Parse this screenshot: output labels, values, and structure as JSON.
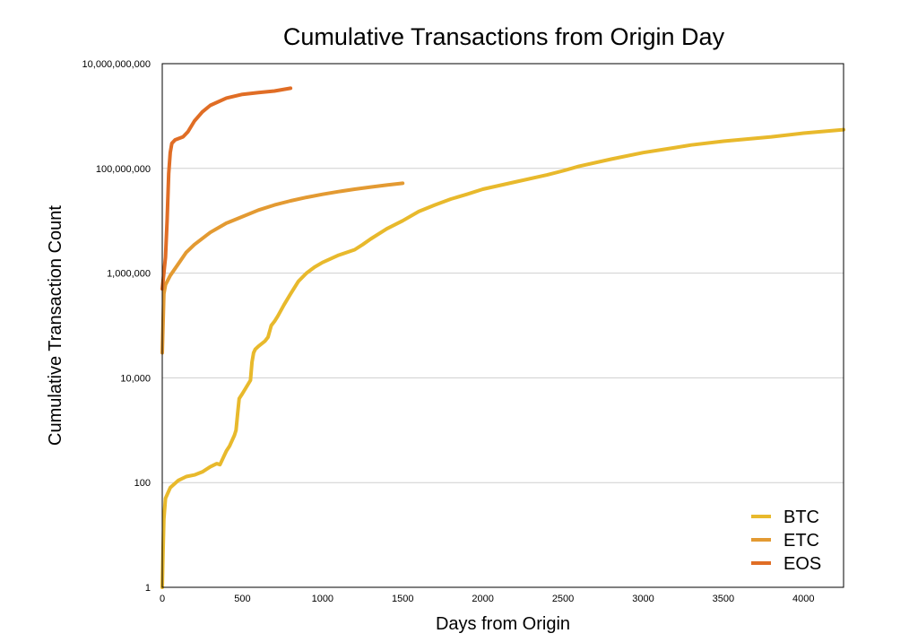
{
  "chart_data": {
    "type": "line",
    "title": "Cumulative Transactions from Origin Day",
    "xlabel": "Days from Origin",
    "ylabel": "Cumulative Transaction Count",
    "xlim": [
      0,
      4250
    ],
    "ylim": [
      1,
      10000000000
    ],
    "yscale": "log",
    "x_ticks": [
      "0",
      "500",
      "1000",
      "1500",
      "2000",
      "2500",
      "3000",
      "3500",
      "4000"
    ],
    "x_tick_values": [
      0,
      500,
      1000,
      1500,
      2000,
      2500,
      3000,
      3500,
      4000
    ],
    "y_ticks": [
      "1",
      "100",
      "10,000",
      "1,000,000",
      "100,000,000",
      "10,000,000,000"
    ],
    "y_tick_values": [
      1,
      100,
      10000,
      1000000,
      100000000,
      10000000000
    ],
    "grid": "horizontal",
    "legend_position": "bottom-right",
    "series": [
      {
        "name": "BTC",
        "color": "#E8B92C",
        "x": [
          0,
          5,
          10,
          20,
          50,
          100,
          150,
          200,
          250,
          300,
          340,
          360,
          400,
          420,
          450,
          460,
          470,
          480,
          500,
          550,
          560,
          570,
          580,
          600,
          640,
          660,
          680,
          700,
          720,
          760,
          800,
          850,
          900,
          950,
          1000,
          1100,
          1200,
          1250,
          1300,
          1400,
          1500,
          1600,
          1700,
          1800,
          1900,
          2000,
          2200,
          2400,
          2500,
          2600,
          2800,
          3000,
          3200,
          3300,
          3500,
          3800,
          4000,
          4250
        ],
        "y": [
          1,
          5,
          20,
          50,
          80,
          110,
          130,
          140,
          160,
          200,
          230,
          220,
          400,
          500,
          800,
          1000,
          2000,
          4000,
          5000,
          9000,
          20000,
          30000,
          35000,
          40000,
          50000,
          60000,
          100000,
          120000,
          150000,
          250000,
          400000,
          700000,
          1000000,
          1300000,
          1600000,
          2200000,
          2800000,
          3500000,
          4500000,
          7000000,
          10000000,
          15000000,
          20000000,
          26000000,
          32000000,
          40000000,
          55000000,
          75000000,
          90000000,
          110000000,
          150000000,
          200000000,
          250000000,
          280000000,
          330000000,
          400000000,
          470000000,
          550000000
        ]
      },
      {
        "name": "ETC",
        "color": "#E39A32",
        "x": [
          0,
          10,
          20,
          50,
          100,
          150,
          200,
          300,
          400,
          500,
          600,
          700,
          800,
          900,
          1000,
          1100,
          1200,
          1300,
          1400,
          1500
        ],
        "y": [
          30000,
          400000,
          600000,
          900000,
          1500000,
          2500000,
          3500000,
          6000000,
          9000000,
          12000000,
          16000000,
          20000000,
          24000000,
          28000000,
          32000000,
          36000000,
          40000000,
          44000000,
          48000000,
          52000000
        ]
      },
      {
        "name": "EOS",
        "color": "#E06D25",
        "x": [
          0,
          10,
          20,
          30,
          40,
          50,
          60,
          80,
          100,
          130,
          160,
          200,
          250,
          300,
          400,
          500,
          600,
          700,
          800
        ],
        "y": [
          500000,
          1000000,
          2000000,
          10000000,
          80000000,
          200000000,
          300000000,
          350000000,
          370000000,
          400000000,
          500000000,
          800000000,
          1200000000,
          1600000000,
          2200000000,
          2600000000,
          2800000000,
          3000000000,
          3400000000
        ]
      }
    ]
  }
}
